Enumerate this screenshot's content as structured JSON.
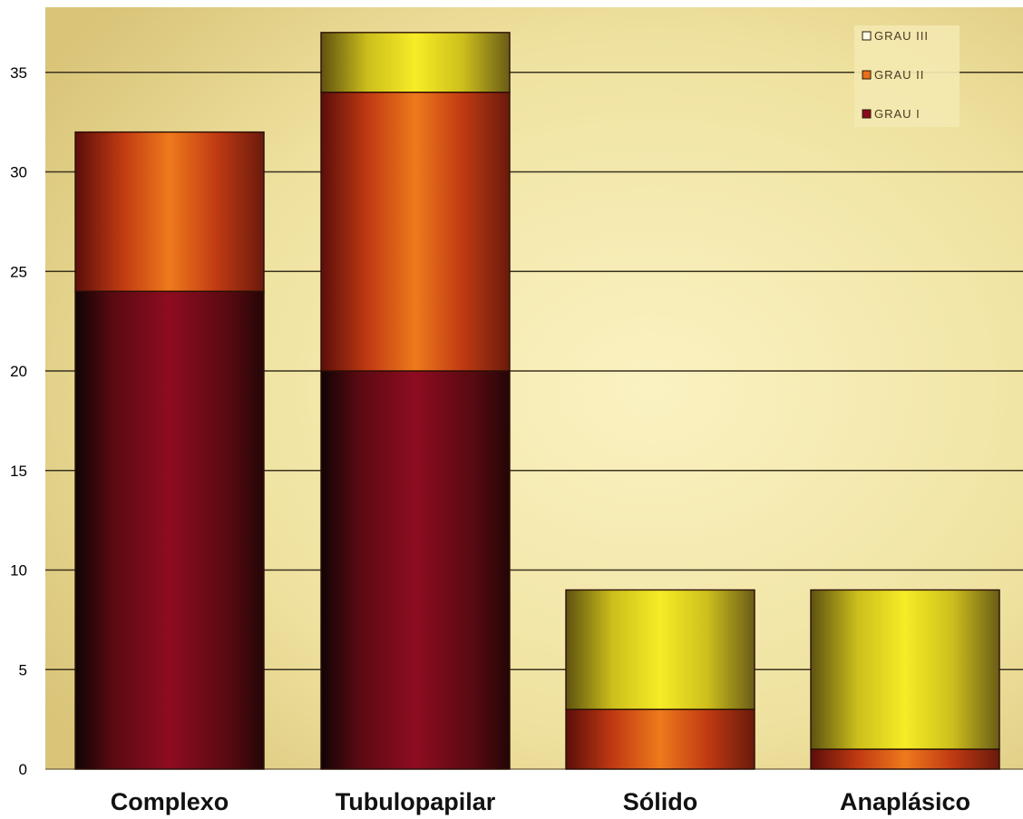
{
  "chart_data": {
    "type": "bar",
    "stacked": true,
    "categories": [
      "Complexo",
      "Tubulopapilar",
      "Sólido",
      "Anaplásico"
    ],
    "series": [
      {
        "name": "GRAU I",
        "values": [
          24,
          20,
          0,
          0
        ]
      },
      {
        "name": "GRAU II",
        "values": [
          8,
          14,
          3,
          1
        ]
      },
      {
        "name": "GRAU III",
        "values": [
          0,
          3,
          6,
          8
        ]
      }
    ],
    "ylim": [
      0,
      38
    ],
    "yticks": [
      0,
      5,
      10,
      15,
      20,
      25,
      30,
      35
    ],
    "grid": true,
    "legend": "top-right",
    "colors": {
      "GRAU I": "#8a0a1e",
      "GRAU II": "#e8701a",
      "GRAU III": "#f2e41c",
      "background": "#efe4a4",
      "gridline": "#3b3320"
    }
  }
}
